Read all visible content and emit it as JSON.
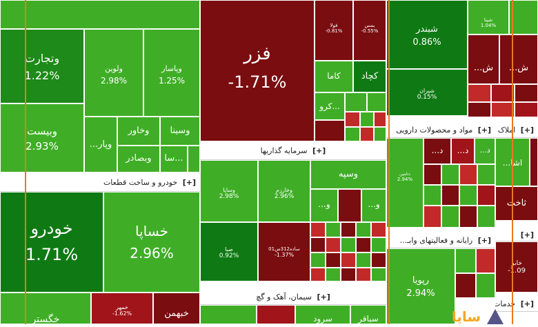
{
  "colors": {
    "green_dark": "#0f7a14",
    "green": "#3fae26",
    "green_light": "#5cc83a",
    "red_dark": "#7a0d10",
    "red": "#a11419",
    "red_light": "#c22a2a",
    "orange_line": "#e8791f"
  },
  "sectors": {
    "trade": {
      "header": ""
    },
    "auto": {
      "header": "خودرو و ساخت قطعات",
      "expand": "[+]"
    },
    "investment": {
      "header": "سرمایه گذاریها",
      "expand": "[+]"
    },
    "cement": {
      "header": "سیمان، آهک و گچ",
      "expand": "[+]"
    },
    "pharma": {
      "header": "مواد و محصولات دارویی",
      "expand": "[+]"
    },
    "computer": {
      "header": "رایانه و فعالیتهای وابـ...",
      "expand": "[+]"
    },
    "realestate": {
      "header": "املاک و",
      "expand": "[+]"
    },
    "services": {
      "header": "خدمات",
      "expand": "[+]"
    }
  },
  "tiles": {
    "top_strip": {
      "name": "",
      "pct": ""
    },
    "vtejarat": {
      "name": "وتجارت",
      "pct": "1.22%"
    },
    "volvin": {
      "name": "ولوین",
      "pct": "2.98%"
    },
    "vpasar": {
      "name": "وپاسار",
      "pct": "1.25%"
    },
    "vbeast": {
      "name": "وبیست",
      "pct": "2.93%"
    },
    "vkhavar": {
      "name": "وخاور"
    },
    "vsina": {
      "name": "وسینا"
    },
    "vpar": {
      "name": "...وپار"
    },
    "vbsadr": {
      "name": "وبصادر"
    },
    "sa": {
      "name": "سا..."
    },
    "khodro": {
      "name": "خودرو",
      "pct": "1.71%"
    },
    "khsapa": {
      "name": "خساپا",
      "pct": "2.96%"
    },
    "khgostar": {
      "name": "خگستر"
    },
    "khmehr": {
      "name": "خمهر",
      "pct": "-1.62%"
    },
    "khbahman": {
      "name": "خبهمن"
    },
    "fazar": {
      "name": "فزر",
      "pct": "-1.71%"
    },
    "fola": {
      "name": "فولا",
      "pct": "-0.81%"
    },
    "bmesh": {
      "name": "بمس",
      "pct": "-0.55%"
    },
    "kama": {
      "name": "کاما"
    },
    "kojad": {
      "name": "کچاد"
    },
    "kro": {
      "name": "کرو..."
    },
    "shbandar": {
      "name": "شبندر",
      "pct": "0.86%"
    },
    "shpna": {
      "name": "شپنا",
      "pct": "1.04%"
    },
    "sh1": {
      "name": "...ش"
    },
    "sh2": {
      "name": "...ش"
    },
    "shiran": {
      "name": "شیران",
      "pct": "0.15%"
    },
    "vsapa": {
      "name": "وساپا",
      "pct": "2.98%"
    },
    "vkharzem": {
      "name": "وخارزم",
      "pct": "2.96%"
    },
    "vsepah": {
      "name": "وسپه"
    },
    "vo1": {
      "name": "...و"
    },
    "vo2": {
      "name": "...و"
    },
    "sapa": {
      "name": "صبا",
      "pct": "0.92%"
    },
    "sade": {
      "name": "ساده312س01",
      "pct": "-1.37%"
    },
    "dtamin": {
      "name": "دتامین",
      "pct": "2.94%"
    },
    "d1": {
      "name": "...د"
    },
    "d2": {
      "name": "...د"
    },
    "d3": {
      "name": "...د"
    },
    "d4": {
      "name": "...د"
    },
    "rpaya": {
      "name": "رپویا",
      "pct": "2.94%"
    },
    "ashna": {
      "name": "...اشا"
    },
    "takhcht": {
      "name": "ثاخت"
    },
    "khaber": {
      "name": "خابر",
      "pct": "-1.09"
    },
    "svagar": {
      "name": "سباقر"
    },
    "sord": {
      "name": "سرود"
    }
  },
  "logo_text": "ساپا"
}
